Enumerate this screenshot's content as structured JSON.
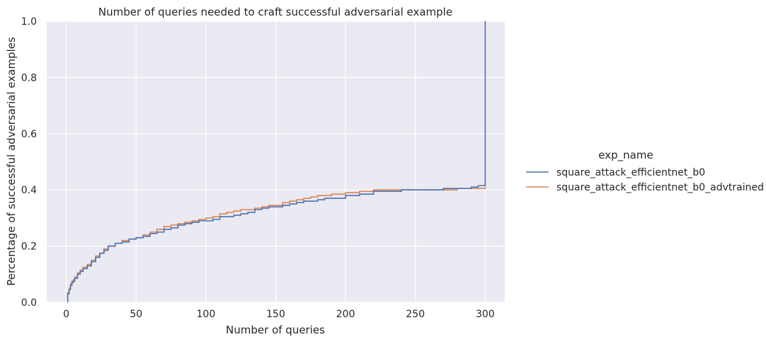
{
  "chart_data": {
    "type": "line",
    "drawstyle": "steps-post (empirical CDF)",
    "title": "Number of queries needed to craft successful adversarial example",
    "xlabel": "Number of queries",
    "ylabel": "Percentage of successful adversarial examples",
    "xlim": [
      -14,
      314
    ],
    "ylim": [
      0,
      1.0
    ],
    "x_ticks": [
      0,
      50,
      100,
      150,
      200,
      250,
      300
    ],
    "y_ticks": [
      0.0,
      0.2,
      0.4,
      0.6,
      0.8,
      1.0
    ],
    "x_tick_labels": [
      "0",
      "50",
      "100",
      "150",
      "200",
      "250",
      "300"
    ],
    "y_tick_labels": [
      "0.0",
      "0.2",
      "0.4",
      "0.6",
      "0.8",
      "1.0"
    ],
    "grid": true,
    "legend": {
      "title": "exp_name",
      "placement": "right, outside"
    },
    "series": [
      {
        "name": "square_attack_efficientnet_b0",
        "color": "#4c72b0",
        "x": [
          1,
          1,
          2,
          3,
          4,
          5,
          6,
          8,
          10,
          12,
          15,
          18,
          21,
          24,
          27,
          30,
          35,
          40,
          45,
          50,
          55,
          60,
          65,
          70,
          75,
          80,
          85,
          90,
          95,
          100,
          105,
          110,
          115,
          120,
          125,
          130,
          135,
          140,
          145,
          150,
          155,
          160,
          165,
          170,
          175,
          180,
          185,
          190,
          200,
          210,
          220,
          230,
          240,
          250,
          260,
          270,
          280,
          290,
          295,
          300,
          300
        ],
        "y": [
          0.0,
          0.03,
          0.045,
          0.06,
          0.07,
          0.075,
          0.085,
          0.1,
          0.11,
          0.12,
          0.13,
          0.145,
          0.16,
          0.175,
          0.185,
          0.2,
          0.21,
          0.215,
          0.225,
          0.23,
          0.235,
          0.245,
          0.25,
          0.26,
          0.265,
          0.275,
          0.28,
          0.285,
          0.29,
          0.29,
          0.295,
          0.305,
          0.305,
          0.31,
          0.315,
          0.32,
          0.33,
          0.335,
          0.34,
          0.34,
          0.345,
          0.35,
          0.355,
          0.36,
          0.36,
          0.365,
          0.37,
          0.37,
          0.38,
          0.385,
          0.395,
          0.395,
          0.4,
          0.4,
          0.4,
          0.405,
          0.405,
          0.41,
          0.415,
          0.415,
          1.0
        ]
      },
      {
        "name": "square_attack_efficientnet_b0_advtrained",
        "color": "#dd8452",
        "x": [
          1,
          1,
          2,
          3,
          4,
          5,
          6,
          8,
          10,
          12,
          15,
          18,
          21,
          24,
          27,
          30,
          35,
          40,
          45,
          50,
          55,
          60,
          65,
          70,
          75,
          80,
          85,
          90,
          95,
          100,
          105,
          110,
          115,
          120,
          125,
          130,
          135,
          140,
          145,
          150,
          155,
          160,
          165,
          170,
          175,
          180,
          185,
          190,
          200,
          210,
          220,
          230,
          240,
          250,
          260,
          270,
          280,
          290,
          300
        ],
        "y": [
          0.0,
          0.035,
          0.05,
          0.065,
          0.075,
          0.08,
          0.09,
          0.105,
          0.115,
          0.125,
          0.135,
          0.15,
          0.165,
          0.175,
          0.19,
          0.2,
          0.21,
          0.22,
          0.225,
          0.23,
          0.24,
          0.25,
          0.26,
          0.27,
          0.275,
          0.28,
          0.285,
          0.29,
          0.295,
          0.3,
          0.305,
          0.315,
          0.32,
          0.325,
          0.33,
          0.33,
          0.335,
          0.34,
          0.345,
          0.345,
          0.355,
          0.36,
          0.365,
          0.37,
          0.375,
          0.38,
          0.38,
          0.385,
          0.39,
          0.395,
          0.4,
          0.4,
          0.4,
          0.4,
          0.4,
          0.4,
          0.405,
          0.405,
          0.41
        ]
      }
    ]
  }
}
